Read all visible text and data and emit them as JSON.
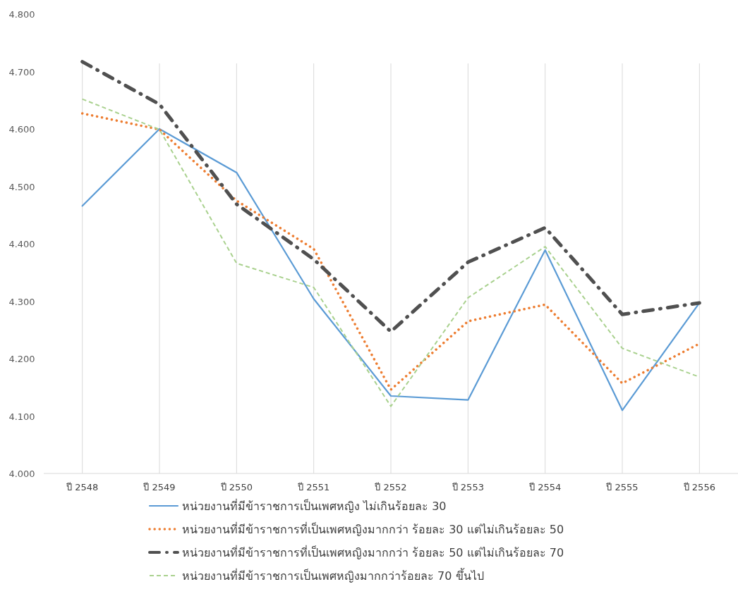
{
  "chart_data": {
    "type": "line",
    "categories": [
      "ปี 2548",
      "ปี 2549",
      "ปี 2550",
      "ปี 2551",
      "ปี 2552",
      "ปี 2553",
      "ปี 2554",
      "ปี 2555",
      "ปี 2556"
    ],
    "series": [
      {
        "name": "หน่วยงานที่มีข้าราชการเป็นเพศหญิง ไม่เกินร้อยละ 30",
        "color": "#5b9bd5",
        "line_style": "solid",
        "values": [
          4.466,
          4.6,
          4.524,
          4.304,
          4.135,
          4.128,
          4.389,
          4.11,
          4.297
        ]
      },
      {
        "name": "หน่วยงานที่มีข้าราชการที่เป็นเพศหญิงมากกว่า ร้อยละ 30 แต่ไม่เกินร้อยละ 50",
        "color": "#ed7d31",
        "line_style": "dotted",
        "values": [
          4.627,
          4.599,
          4.475,
          4.391,
          4.146,
          4.265,
          4.294,
          4.157,
          4.226
        ]
      },
      {
        "name": "หน่วยงานที่มีข้าราชการที่เป็นเพศหญิงมากกว่า ร้อยละ 50 แต่ไม่เกินร้อยละ 70",
        "color": "#505050",
        "line_style": "dashdot",
        "values": [
          4.717,
          4.643,
          4.469,
          4.373,
          4.247,
          4.368,
          4.428,
          4.277,
          4.297
        ]
      },
      {
        "name": "หน่วยงานที่มีข้าราชการเป็นเพศหญิงมากกว่าร้อยละ 70 ขึ้นไป",
        "color": "#a9d18e",
        "line_style": "dashed",
        "values": [
          4.652,
          4.599,
          4.366,
          4.324,
          4.117,
          4.306,
          4.395,
          4.218,
          4.168
        ]
      }
    ],
    "ylim": [
      4.0,
      4.8
    ],
    "yticks": [
      {
        "value": 4.0,
        "label": "4.000"
      },
      {
        "value": 4.1,
        "label": "4.100"
      },
      {
        "value": 4.2,
        "label": "4.200"
      },
      {
        "value": 4.3,
        "label": "4.300"
      },
      {
        "value": 4.4,
        "label": "4.400"
      },
      {
        "value": 4.5,
        "label": "4.500"
      },
      {
        "value": 4.6,
        "label": "4.600"
      },
      {
        "value": 4.7,
        "label": "4.700"
      },
      {
        "value": 4.8,
        "label": "4.800"
      }
    ],
    "grid": "x",
    "legend": "bottom",
    "marker": "none"
  }
}
